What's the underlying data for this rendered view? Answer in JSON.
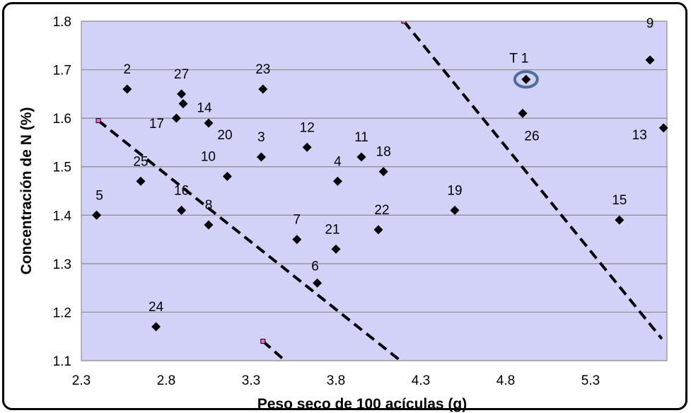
{
  "chart_data": {
    "type": "scatter",
    "xlabel": "Peso seco de 100 acículas (g)",
    "ylabel": "Concentración de N (%)",
    "xlim": [
      2.3,
      5.75
    ],
    "ylim": [
      1.1,
      1.8
    ],
    "xticks": [
      "2.3",
      "2.8",
      "3.3",
      "3.8",
      "4.3",
      "4.8",
      "5.3"
    ],
    "yticks": [
      "1.1",
      "1.2",
      "1.3",
      "1.4",
      "1.5",
      "1.6",
      "1.7",
      "1.8"
    ],
    "grid": "horizontal",
    "plot_background": "#d2d2f8",
    "marker": "diamond",
    "marker_color": "#000000",
    "highlight_color": "#4a6f9a",
    "points": [
      {
        "label": "T 1",
        "x": 4.92,
        "y": 1.68,
        "highlighted": true
      },
      {
        "label": "2",
        "x": 2.57,
        "y": 1.66
      },
      {
        "label": "3",
        "x": 3.36,
        "y": 1.52
      },
      {
        "label": "4",
        "x": 3.81,
        "y": 1.47
      },
      {
        "label": "5",
        "x": 2.39,
        "y": 1.4
      },
      {
        "label": "6",
        "x": 3.69,
        "y": 1.26
      },
      {
        "label": "7",
        "x": 3.57,
        "y": 1.35
      },
      {
        "label": "8",
        "x": 3.05,
        "y": 1.38
      },
      {
        "label": "9",
        "x": 5.65,
        "y": 1.72
      },
      {
        "label": "10",
        "x": 3.16,
        "y": 1.48
      },
      {
        "label": "11",
        "x": 3.95,
        "y": 1.52
      },
      {
        "label": "12",
        "x": 3.63,
        "y": 1.54
      },
      {
        "label": "13",
        "x": 5.73,
        "y": 1.58
      },
      {
        "label": "14",
        "x": 2.9,
        "y": 1.63
      },
      {
        "label": "15",
        "x": 5.47,
        "y": 1.39
      },
      {
        "label": "16",
        "x": 2.89,
        "y": 1.41
      },
      {
        "label": "17",
        "x": 2.86,
        "y": 1.6
      },
      {
        "label": "18",
        "x": 4.08,
        "y": 1.49
      },
      {
        "label": "19",
        "x": 4.5,
        "y": 1.41
      },
      {
        "label": "20",
        "x": 3.05,
        "y": 1.59
      },
      {
        "label": "21",
        "x": 3.8,
        "y": 1.33
      },
      {
        "label": "22",
        "x": 4.05,
        "y": 1.37
      },
      {
        "label": "23",
        "x": 3.37,
        "y": 1.66
      },
      {
        "label": "24",
        "x": 2.74,
        "y": 1.17
      },
      {
        "label": "25",
        "x": 2.65,
        "y": 1.47
      },
      {
        "label": "26",
        "x": 4.9,
        "y": 1.61
      },
      {
        "label": "27",
        "x": 2.89,
        "y": 1.65
      }
    ],
    "dashed_lines": [
      {
        "x1": 2.4,
        "y1": 1.595,
        "x2": 4.18,
        "y2": 1.1
      },
      {
        "x1": 3.37,
        "y1": 1.14,
        "x2": 3.5,
        "y2": 1.1
      },
      {
        "x1": 4.2,
        "y1": 1.8,
        "x2": 5.72,
        "y2": 1.145
      }
    ]
  }
}
